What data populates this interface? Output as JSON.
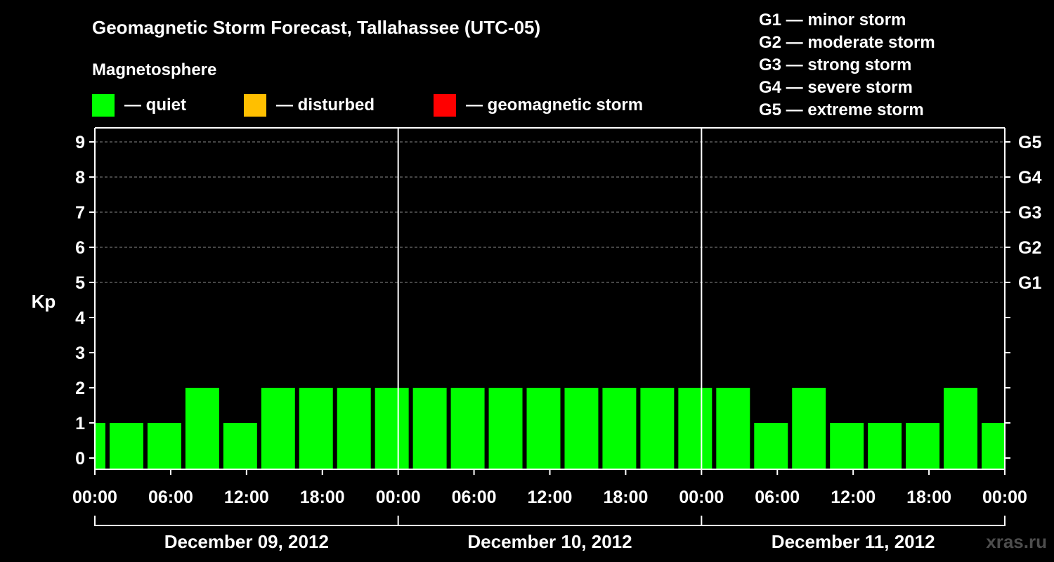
{
  "title": "Geomagnetic Storm Forecast, Tallahassee (UTC-05)",
  "legend": {
    "heading": "Magnetosphere",
    "items": [
      {
        "label": "— quiet",
        "color": "#00ff00"
      },
      {
        "label": "— disturbed",
        "color": "#ffbf00"
      },
      {
        "label": "— geomagnetic storm",
        "color": "#ff0000"
      }
    ]
  },
  "g_scale": [
    {
      "label": "G1 — minor storm"
    },
    {
      "label": "G2 — moderate storm"
    },
    {
      "label": "G3 — strong storm"
    },
    {
      "label": "G4 — severe storm"
    },
    {
      "label": "G5 — extreme storm"
    }
  ],
  "watermark": "xras.ru",
  "chart_data": {
    "type": "bar",
    "ylabel": "Kp",
    "ylim": [
      0,
      9
    ],
    "yticks": [
      "0",
      "1",
      "2",
      "3",
      "4",
      "5",
      "6",
      "7",
      "8",
      "9"
    ],
    "right_ticks": [
      {
        "kp": 5,
        "label": "G1"
      },
      {
        "kp": 6,
        "label": "G2"
      },
      {
        "kp": 7,
        "label": "G3"
      },
      {
        "kp": 8,
        "label": "G4"
      },
      {
        "kp": 9,
        "label": "G5"
      }
    ],
    "x_hours_range": [
      0,
      72
    ],
    "xticks": [
      "00:00",
      "06:00",
      "12:00",
      "18:00",
      "00:00",
      "06:00",
      "12:00",
      "18:00",
      "00:00",
      "06:00",
      "12:00",
      "18:00",
      "00:00"
    ],
    "days": [
      "December 09, 2012",
      "December 10, 2012",
      "December 11, 2012"
    ],
    "bars": [
      {
        "start": 0,
        "end": 1,
        "kp": 1
      },
      {
        "start": 1,
        "end": 4,
        "kp": 1
      },
      {
        "start": 4,
        "end": 7,
        "kp": 1
      },
      {
        "start": 7,
        "end": 10,
        "kp": 2
      },
      {
        "start": 10,
        "end": 13,
        "kp": 1
      },
      {
        "start": 13,
        "end": 16,
        "kp": 2
      },
      {
        "start": 16,
        "end": 19,
        "kp": 2
      },
      {
        "start": 19,
        "end": 22,
        "kp": 2
      },
      {
        "start": 22,
        "end": 25,
        "kp": 2
      },
      {
        "start": 25,
        "end": 28,
        "kp": 2
      },
      {
        "start": 28,
        "end": 31,
        "kp": 2
      },
      {
        "start": 31,
        "end": 34,
        "kp": 2
      },
      {
        "start": 34,
        "end": 37,
        "kp": 2
      },
      {
        "start": 37,
        "end": 40,
        "kp": 2
      },
      {
        "start": 40,
        "end": 43,
        "kp": 2
      },
      {
        "start": 43,
        "end": 46,
        "kp": 2
      },
      {
        "start": 46,
        "end": 49,
        "kp": 2
      },
      {
        "start": 49,
        "end": 52,
        "kp": 2
      },
      {
        "start": 52,
        "end": 55,
        "kp": 1
      },
      {
        "start": 55,
        "end": 58,
        "kp": 2
      },
      {
        "start": 58,
        "end": 61,
        "kp": 1
      },
      {
        "start": 61,
        "end": 64,
        "kp": 1
      },
      {
        "start": 64,
        "end": 67,
        "kp": 1
      },
      {
        "start": 67,
        "end": 70,
        "kp": 2
      },
      {
        "start": 70,
        "end": 72,
        "kp": 1
      }
    ],
    "level_colors": {
      "quiet": "#00ff00",
      "disturbed": "#ffbf00",
      "storm": "#ff0000"
    }
  }
}
